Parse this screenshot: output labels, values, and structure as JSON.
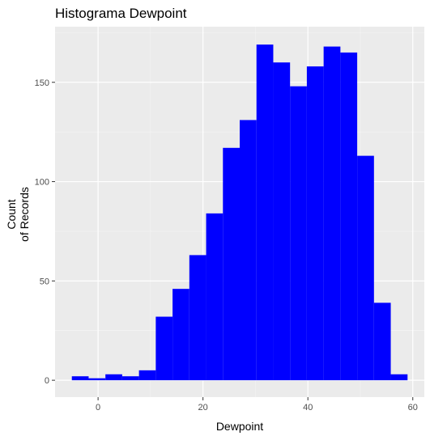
{
  "chart_data": {
    "type": "bar",
    "title": "Histograma Dewpoint",
    "xlabel": "Dewpoint",
    "ylabel_lines": [
      "Count",
      "of Records"
    ],
    "bin_width": 3.2,
    "bins": [
      {
        "x0": -5.0,
        "x1": -1.8,
        "count": 2
      },
      {
        "x0": -1.8,
        "x1": 1.4,
        "count": 1
      },
      {
        "x0": 1.4,
        "x1": 4.6,
        "count": 3
      },
      {
        "x0": 4.6,
        "x1": 7.8,
        "count": 2
      },
      {
        "x0": 7.8,
        "x1": 11.0,
        "count": 5
      },
      {
        "x0": 11.0,
        "x1": 14.2,
        "count": 32
      },
      {
        "x0": 14.2,
        "x1": 17.4,
        "count": 46
      },
      {
        "x0": 17.4,
        "x1": 20.6,
        "count": 63
      },
      {
        "x0": 20.6,
        "x1": 23.8,
        "count": 84
      },
      {
        "x0": 23.8,
        "x1": 27.0,
        "count": 117
      },
      {
        "x0": 27.0,
        "x1": 30.2,
        "count": 131
      },
      {
        "x0": 30.2,
        "x1": 33.4,
        "count": 169
      },
      {
        "x0": 33.4,
        "x1": 36.6,
        "count": 160
      },
      {
        "x0": 36.6,
        "x1": 39.8,
        "count": 148
      },
      {
        "x0": 39.8,
        "x1": 43.0,
        "count": 158
      },
      {
        "x0": 43.0,
        "x1": 46.2,
        "count": 168
      },
      {
        "x0": 46.2,
        "x1": 49.4,
        "count": 165
      },
      {
        "x0": 49.4,
        "x1": 52.6,
        "count": 113
      },
      {
        "x0": 52.6,
        "x1": 55.8,
        "count": 39
      },
      {
        "x0": 55.8,
        "x1": 59.0,
        "count": 3
      }
    ],
    "xlim": [
      -8.2,
      62.2
    ],
    "ylim": [
      -8.5,
      178
    ],
    "x_ticks": [
      0,
      20,
      40,
      60
    ],
    "x_minor": [
      -10,
      10,
      30,
      50
    ],
    "y_ticks": [
      0,
      50,
      100,
      150
    ],
    "y_minor": [
      25,
      75,
      125,
      175
    ],
    "grid": true,
    "colors": {
      "bar": "#0000ff",
      "panel": "#ebebeb",
      "grid_major": "#ffffff",
      "grid_minor": "#f5f5f5",
      "tick": "#333333",
      "tick_label": "#4d4d4d"
    }
  }
}
